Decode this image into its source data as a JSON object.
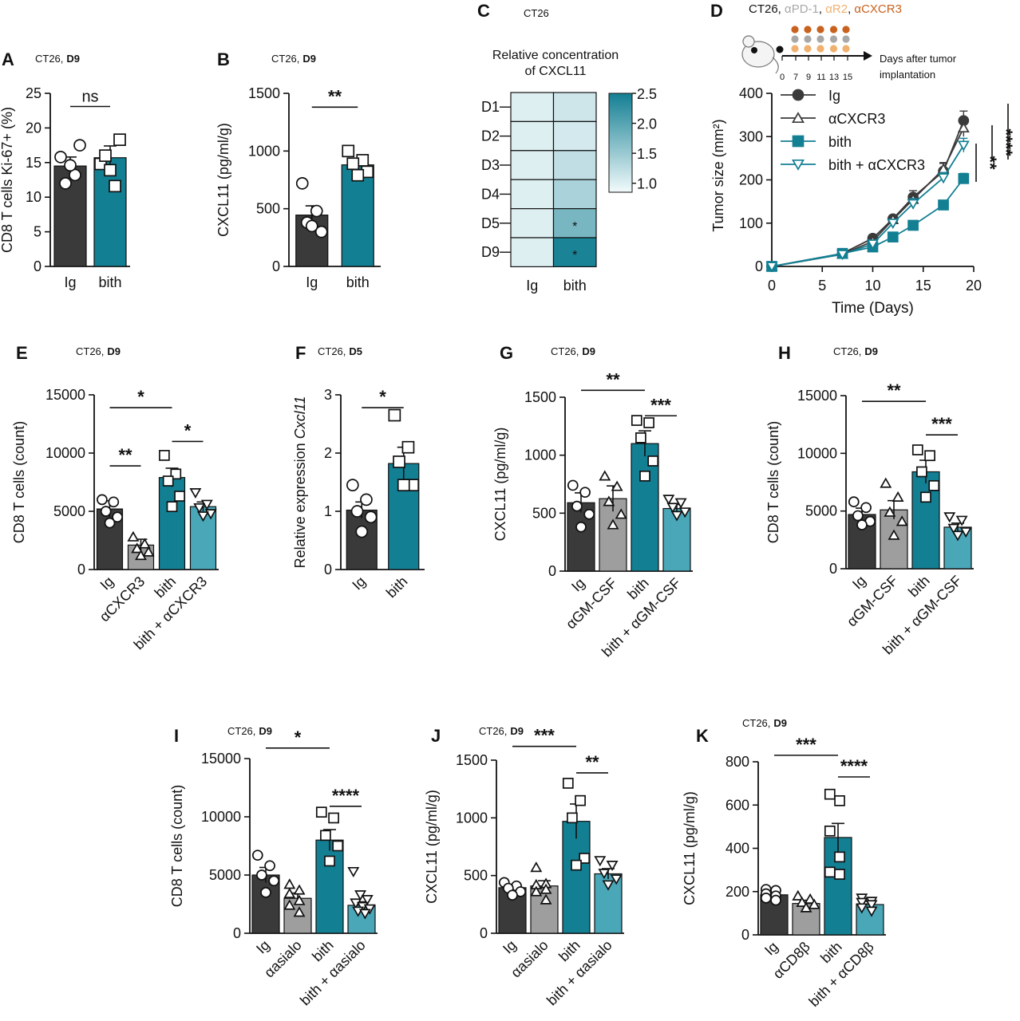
{
  "colors": {
    "ig": "#3a3a3a",
    "anti": "#9e9e9e",
    "bith": "#137f93",
    "combo": "#4aa7b8",
    "pd1": "#a8a8a8",
    "r2": "#f0b070",
    "cxcr3": "#c8621e",
    "heat_low": "#f2fafb",
    "heat_high": "#137f93"
  },
  "chart_data": [
    {
      "panel": "A",
      "type": "bar",
      "context": "CT26,",
      "day": "D9",
      "ylabel": "CD8 T cells Ki-67+ (%)",
      "ylim": [
        0,
        25
      ],
      "yticks": [
        0,
        5,
        10,
        15,
        20,
        25
      ],
      "categories": [
        "Ig",
        "bith"
      ],
      "category_rotation": 0,
      "values": [
        14.5,
        15.7
      ],
      "errors": [
        1.3,
        1.7
      ],
      "points": [
        [
          15.8,
          13.2,
          12.0,
          17.5,
          14.6
        ],
        [
          14.8,
          11.6,
          16.0,
          18.3,
          13.9
        ]
      ],
      "markers": [
        "circle",
        "square"
      ],
      "colorKeys": [
        "ig",
        "bith"
      ],
      "sig": [
        {
          "from": 0,
          "to": 1,
          "y": 23.1,
          "label": "ns"
        }
      ]
    },
    {
      "panel": "B",
      "type": "bar",
      "context": "CT26,",
      "day": "D9",
      "ylabel": "CXCL11 (pg/ml/g)",
      "ylim": [
        0,
        1500
      ],
      "yticks": [
        0,
        500,
        1000,
        1500
      ],
      "categories": [
        "Ig",
        "bith"
      ],
      "category_rotation": 0,
      "values": [
        445,
        880
      ],
      "errors": [
        80,
        55
      ],
      "points": [
        [
          720,
          480,
          380,
          300,
          350
        ],
        [
          1000,
          920,
          890,
          820,
          790
        ]
      ],
      "markers": [
        "circle",
        "square"
      ],
      "colorKeys": [
        "ig",
        "bith"
      ],
      "sig": [
        {
          "from": 0,
          "to": 1,
          "y": 1380,
          "label": "**"
        }
      ]
    },
    {
      "panel": "C",
      "type": "heatmap",
      "context": "CT26",
      "title": "Relative concentration of CXCL11",
      "title_lines": [
        "Relative concentration",
        "of CXCL11"
      ],
      "rows": [
        "D1",
        "D2",
        "D3",
        "D4",
        "D5",
        "D9"
      ],
      "columns": [
        "Ig",
        "bith"
      ],
      "values": [
        [
          1.0,
          1.12
        ],
        [
          1.0,
          1.08
        ],
        [
          1.0,
          1.22
        ],
        [
          1.0,
          1.38
        ],
        [
          1.0,
          1.75
        ],
        [
          1.0,
          2.45
        ]
      ],
      "stars": [
        [
          "",
          ""
        ],
        [
          "",
          ""
        ],
        [
          "",
          ""
        ],
        [
          "",
          ""
        ],
        [
          "",
          "*"
        ],
        [
          "",
          "*"
        ]
      ],
      "scale_range": [
        0.85,
        2.5
      ],
      "scale_ticks": [
        "1.0",
        "1.5",
        "2.0",
        "2.5"
      ]
    },
    {
      "panel": "D",
      "type": "line",
      "context": "CT26,",
      "legend_title_parts": [
        {
          "text": "αPD-1",
          "colorKey": "pd1"
        },
        {
          "text": "αR2",
          "colorKey": "r2"
        },
        {
          "text": "αCXCR3",
          "colorKey": "cxcr3"
        }
      ],
      "schedule": {
        "tick_labels": [
          "0",
          "7",
          "9",
          "11",
          "13",
          "15"
        ],
        "arrow_label_lines": [
          "Days after tumor",
          "implantation"
        ],
        "dot_rows": [
          "cxcr3",
          "pd1",
          "r2"
        ]
      },
      "xlabel": "Time (Days)",
      "ylabel": "Tumor size (mm²)",
      "xlim": [
        0,
        20
      ],
      "xticks": [
        0,
        5,
        10,
        15,
        20
      ],
      "ylim": [
        0,
        400
      ],
      "yticks": [
        0,
        100,
        200,
        300,
        400
      ],
      "x": [
        0,
        7,
        10,
        12,
        14,
        17,
        19
      ],
      "series": [
        {
          "name": "Ig",
          "marker": "circle-filled",
          "colorKey": "ig",
          "values": [
            0,
            30,
            65,
            110,
            160,
            220,
            337
          ],
          "errors": [
            0,
            5,
            8,
            8,
            15,
            18,
            22
          ]
        },
        {
          "name": "αCXCR3",
          "marker": "triangle-open",
          "colorKey": "ig",
          "values": [
            0,
            28,
            58,
            108,
            155,
            225,
            320
          ],
          "errors": [
            0,
            5,
            8,
            8,
            12,
            15,
            20
          ]
        },
        {
          "name": "bith",
          "marker": "square-filled",
          "colorKey": "bith",
          "values": [
            0,
            30,
            45,
            68,
            95,
            142,
            203
          ],
          "errors": [
            0,
            6,
            6,
            6,
            10,
            10,
            12
          ]
        },
        {
          "name": "bith + αCXCR3",
          "marker": "triangle-down-open",
          "colorKey": "bith",
          "values": [
            0,
            28,
            52,
            100,
            145,
            205,
            280
          ],
          "errors": [
            0,
            6,
            8,
            8,
            12,
            12,
            16
          ]
        }
      ],
      "sig": [
        "**",
        "****",
        "****"
      ]
    },
    {
      "panel": "E",
      "type": "bar",
      "context": "CT26,",
      "day": "D9",
      "ylabel": "CD8 T cells (count)",
      "ylim": [
        0,
        15000
      ],
      "yticks": [
        0,
        5000,
        10000,
        15000
      ],
      "categories": [
        "Ig",
        "αCXCR3",
        "bith",
        "bith + αCXCR3"
      ],
      "category_rotation": -45,
      "values": [
        5200,
        2100,
        7900,
        5400
      ],
      "errors": [
        700,
        500,
        800,
        400
      ],
      "points": [
        [
          6000,
          5800,
          5000,
          4500,
          4000
        ],
        [
          2800,
          2200,
          1800,
          1500,
          1200
        ],
        [
          9800,
          8200,
          7600,
          6300,
          5400
        ],
        [
          6600,
          5600,
          5300,
          4800,
          4600
        ]
      ],
      "markers": [
        "circle",
        "triangle",
        "square",
        "triangle-down"
      ],
      "colorKeys": [
        "ig",
        "anti",
        "bith",
        "combo"
      ],
      "sig": [
        {
          "from": 0,
          "to": 2,
          "y": 13900,
          "label": "*"
        },
        {
          "from": 0,
          "to": 1,
          "y": 8900,
          "label": "**"
        },
        {
          "from": 2,
          "to": 3,
          "y": 11000,
          "label": "*"
        }
      ]
    },
    {
      "panel": "F",
      "type": "bar",
      "context": "CT26,",
      "day": "D5",
      "ylabel_plain": "Relative expression ",
      "ylabel_italic": "Cxcl11",
      "ylim": [
        0,
        3
      ],
      "yticks": [
        0,
        1,
        2,
        3
      ],
      "categories": [
        "Ig",
        "bith"
      ],
      "category_rotation": -45,
      "values": [
        1.02,
        1.82
      ],
      "errors": [
        0.14,
        0.28
      ],
      "points": [
        [
          1.45,
          1.2,
          1.0,
          0.9,
          0.65
        ],
        [
          2.65,
          2.1,
          1.85,
          1.45,
          1.45
        ]
      ],
      "markers": [
        "circle",
        "square"
      ],
      "colorKeys": [
        "ig",
        "bith"
      ],
      "sig": [
        {
          "from": 0,
          "to": 1,
          "y": 2.78,
          "label": "*"
        }
      ]
    },
    {
      "panel": "G",
      "type": "bar",
      "context": "CT26,",
      "day": "D9",
      "ylabel": "CXCL11 (pg/ml/g)",
      "ylim": [
        0,
        1500
      ],
      "yticks": [
        0,
        500,
        1000,
        1500
      ],
      "categories": [
        "Ig",
        "αGM-CSF",
        "bith",
        "bith + αGM-CSF"
      ],
      "category_rotation": -45,
      "values": [
        590,
        625,
        1100,
        540
      ],
      "errors": [
        85,
        110,
        110,
        35
      ],
      "points": [
        [
          740,
          680,
          560,
          490,
          380
        ],
        [
          820,
          730,
          600,
          490,
          400
        ],
        [
          1300,
          1280,
          1150,
          950,
          820
        ],
        [
          620,
          590,
          550,
          510,
          480
        ]
      ],
      "markers": [
        "circle",
        "triangle",
        "square",
        "triangle-down"
      ],
      "colorKeys": [
        "ig",
        "anti",
        "bith",
        "combo"
      ],
      "sig": [
        {
          "from": 0,
          "to": 2,
          "y": 1560,
          "label": "**"
        },
        {
          "from": 2,
          "to": 3,
          "y": 1340,
          "label": "***"
        }
      ]
    },
    {
      "panel": "H",
      "type": "bar",
      "context": "CT26,",
      "day": "D9",
      "ylabel": "CD8 T cells (count)",
      "ylim": [
        0,
        15000
      ],
      "yticks": [
        0,
        5000,
        10000,
        15000
      ],
      "categories": [
        "Ig",
        "αGM-CSF",
        "bith",
        "bith + αGM-CSF"
      ],
      "category_rotation": -45,
      "values": [
        4700,
        5100,
        8400,
        3600
      ],
      "errors": [
        550,
        800,
        1000,
        350
      ],
      "points": [
        [
          5800,
          5300,
          4600,
          4100,
          3800
        ],
        [
          7400,
          6200,
          4900,
          4100,
          2900
        ],
        [
          10300,
          9800,
          8400,
          7200,
          6200
        ],
        [
          4500,
          4200,
          3500,
          3200,
          2900
        ]
      ],
      "markers": [
        "circle",
        "triangle",
        "square",
        "triangle-down"
      ],
      "colorKeys": [
        "ig",
        "anti",
        "bith",
        "combo"
      ],
      "sig": [
        {
          "from": 0,
          "to": 2,
          "y": 14500,
          "label": "**"
        },
        {
          "from": 2,
          "to": 3,
          "y": 11600,
          "label": "***"
        }
      ]
    },
    {
      "panel": "I",
      "type": "bar",
      "context": "CT26,",
      "day": "D9",
      "ylabel": "CD8 T cells (count)",
      "ylim": [
        0,
        15000
      ],
      "yticks": [
        0,
        5000,
        10000,
        15000
      ],
      "categories": [
        "Ig",
        "αasialo",
        "bith",
        "bith + αasialo"
      ],
      "category_rotation": -45,
      "values": [
        5000,
        3000,
        8000,
        2400
      ],
      "errors": [
        650,
        450,
        900,
        300
      ],
      "points": [
        [
          6700,
          5800,
          5000,
          4500,
          3500
        ],
        [
          4200,
          3700,
          3400,
          2800,
          2400,
          1800
        ],
        [
          10400,
          9900,
          8400,
          7500,
          6200
        ],
        [
          5300,
          3300,
          2900,
          2600,
          2300,
          2100,
          1900,
          1700
        ]
      ],
      "markers": [
        "circle",
        "triangle",
        "square",
        "triangle-down"
      ],
      "colorKeys": [
        "ig",
        "anti",
        "bith",
        "combo"
      ],
      "sig": [
        {
          "from": 0,
          "to": 2,
          "y": 15900,
          "label": "*"
        },
        {
          "from": 2,
          "to": 3,
          "y": 10900,
          "label": "****"
        }
      ]
    },
    {
      "panel": "J",
      "type": "bar",
      "context": "CT26,",
      "day": "D9",
      "ylabel": "CXCL11 (pg/ml/g)",
      "ylim": [
        0,
        1500
      ],
      "yticks": [
        0,
        500,
        1000,
        1500
      ],
      "categories": [
        "Ig",
        "αasialo",
        "bith",
        "bith + αasialo"
      ],
      "category_rotation": -45,
      "values": [
        395,
        410,
        970,
        515
      ],
      "errors": [
        25,
        45,
        150,
        45
      ],
      "points": [
        [
          440,
          410,
          390,
          360,
          330
        ],
        [
          570,
          430,
          420,
          380,
          360,
          290
        ],
        [
          1300,
          1150,
          1000,
          650,
          590
        ],
        [
          630,
          590,
          520,
          470,
          420
        ]
      ],
      "markers": [
        "circle",
        "triangle",
        "square",
        "triangle-down"
      ],
      "colorKeys": [
        "ig",
        "anti",
        "bith",
        "combo"
      ],
      "sig": [
        {
          "from": 0,
          "to": 2,
          "y": 1620,
          "label": "***"
        },
        {
          "from": 2,
          "to": 3,
          "y": 1390,
          "label": "**"
        }
      ]
    },
    {
      "panel": "K",
      "type": "bar",
      "context": "CT26,",
      "day": "D9",
      "ylabel": "CXCL11 (pg/ml/g)",
      "ylim": [
        0,
        800
      ],
      "yticks": [
        0,
        200,
        400,
        600,
        800
      ],
      "categories": [
        "Ig",
        "αCD8β",
        "bith",
        "bith + αCD8β"
      ],
      "category_rotation": -45,
      "values": [
        185,
        145,
        450,
        140
      ],
      "errors": [
        15,
        15,
        65,
        15
      ],
      "points": [
        [
          210,
          205,
          190,
          180,
          170,
          160
        ],
        [
          180,
          165,
          150,
          140,
          125
        ],
        [
          650,
          620,
          480,
          360,
          290,
          280
        ],
        [
          170,
          155,
          150,
          140,
          125,
          110
        ]
      ],
      "markers": [
        "circle",
        "triangle",
        "square",
        "triangle-down"
      ],
      "colorKeys": [
        "ig",
        "anti",
        "bith",
        "combo"
      ],
      "sig": [
        {
          "from": 0,
          "to": 2,
          "y": 830,
          "label": "***"
        },
        {
          "from": 2,
          "to": 3,
          "y": 730,
          "label": "****"
        }
      ]
    }
  ]
}
